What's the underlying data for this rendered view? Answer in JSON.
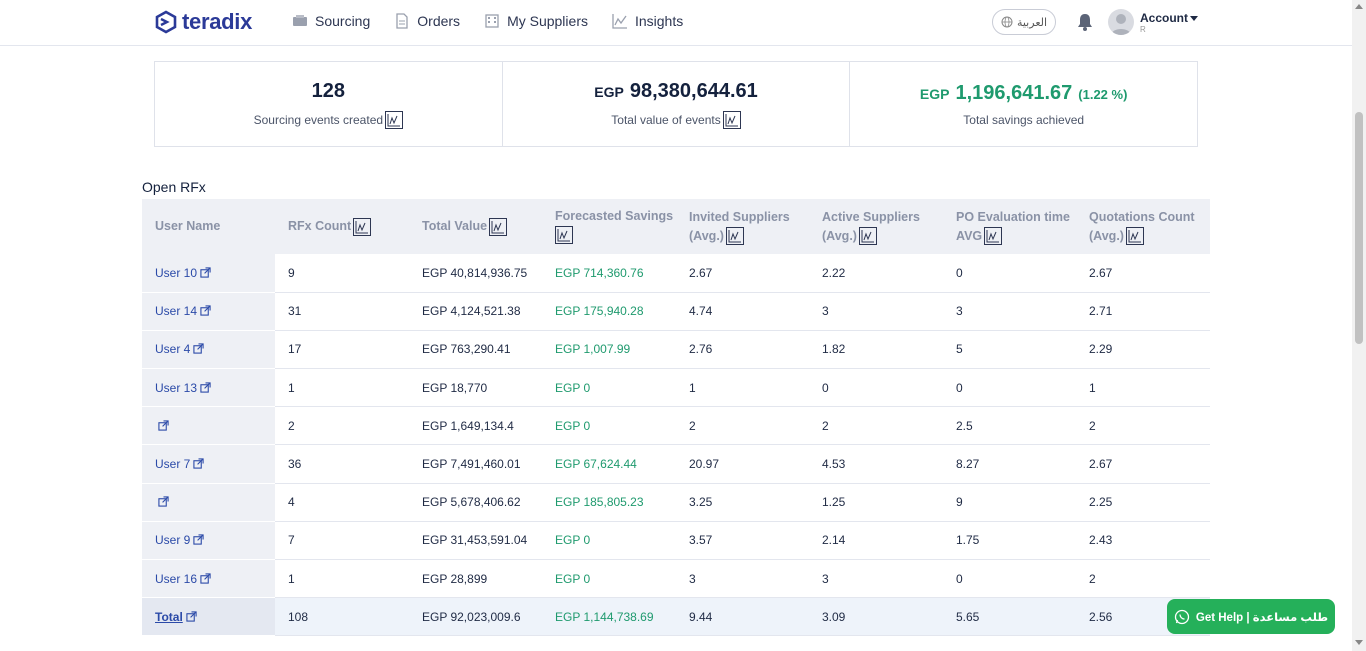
{
  "brand": {
    "name": "teradix"
  },
  "nav": [
    {
      "label": "Sourcing",
      "icon": "sourcing-icon"
    },
    {
      "label": "Orders",
      "icon": "document-icon"
    },
    {
      "label": "My Suppliers",
      "icon": "building-icon"
    },
    {
      "label": "Insights",
      "icon": "chart-icon"
    }
  ],
  "header": {
    "language_label": "العربية",
    "account_label": "Account",
    "account_sub": "R"
  },
  "stats": {
    "events": {
      "value": "128",
      "label": "Sourcing events created"
    },
    "total_value": {
      "currency": "EGP",
      "value": "98,380,644.61",
      "label": "Total value of events"
    },
    "savings": {
      "currency": "EGP",
      "value": "1,196,641.67",
      "percent": "(1.22 %)",
      "label": "Total savings achieved"
    }
  },
  "section": {
    "title": "Open RFx"
  },
  "table": {
    "columns": [
      {
        "line1": "User Name",
        "line2": "",
        "chart": false
      },
      {
        "line1": "RFx Count",
        "line2": "",
        "chart": true
      },
      {
        "line1": "Total Value",
        "line2": "",
        "chart": true
      },
      {
        "line1": "Forecasted Savings",
        "line2": "",
        "chart": true
      },
      {
        "line1": "Invited Suppliers",
        "line2": "(Avg.)",
        "chart": true
      },
      {
        "line1": "Active Suppliers",
        "line2": "(Avg.)",
        "chart": true
      },
      {
        "line1": "PO Evaluation time",
        "line2": "AVG",
        "chart": true
      },
      {
        "line1": "Quotations Count",
        "line2": "(Avg.)",
        "chart": true
      }
    ],
    "rows": [
      {
        "user": "User 10",
        "count": "9",
        "value": "EGP 40,814,936.75",
        "savings": "EGP 714,360.76",
        "invited": "2.67",
        "active": "2.22",
        "po": "0",
        "quotes": "2.67"
      },
      {
        "user": "User 14",
        "count": "31",
        "value": "EGP 4,124,521.38",
        "savings": "EGP 175,940.28",
        "invited": "4.74",
        "active": "3",
        "po": "3",
        "quotes": "2.71"
      },
      {
        "user": "User 4",
        "count": "17",
        "value": "EGP 763,290.41",
        "savings": "EGP 1,007.99",
        "invited": "2.76",
        "active": "1.82",
        "po": "5",
        "quotes": "2.29"
      },
      {
        "user": "User 13",
        "count": "1",
        "value": "EGP 18,770",
        "savings": "EGP 0",
        "invited": "1",
        "active": "0",
        "po": "0",
        "quotes": "1"
      },
      {
        "user": "",
        "count": "2",
        "value": "EGP 1,649,134.4",
        "savings": "EGP 0",
        "invited": "2",
        "active": "2",
        "po": "2.5",
        "quotes": "2"
      },
      {
        "user": "User 7",
        "count": "36",
        "value": "EGP 7,491,460.01",
        "savings": "EGP 67,624.44",
        "invited": "20.97",
        "active": "4.53",
        "po": "8.27",
        "quotes": "2.67"
      },
      {
        "user": "",
        "count": "4",
        "value": "EGP 5,678,406.62",
        "savings": "EGP 185,805.23",
        "invited": "3.25",
        "active": "1.25",
        "po": "9",
        "quotes": "2.25"
      },
      {
        "user": "User 9",
        "count": "7",
        "value": "EGP 31,453,591.04",
        "savings": "EGP 0",
        "invited": "3.57",
        "active": "2.14",
        "po": "1.75",
        "quotes": "2.43"
      },
      {
        "user": "User 16",
        "count": "1",
        "value": "EGP 28,899",
        "savings": "EGP 0",
        "invited": "3",
        "active": "3",
        "po": "0",
        "quotes": "2"
      }
    ],
    "total": {
      "user": "Total",
      "count": "108",
      "value": "EGP 92,023,009.6",
      "savings": "EGP 1,144,738.69",
      "invited": "9.44",
      "active": "3.09",
      "po": "5.65",
      "quotes": "2.56"
    }
  },
  "help": {
    "label": "Get Help | طلب مساعدة"
  },
  "colors": {
    "brand": "#2b3a98",
    "green": "#1f9a6e",
    "whatsapp": "#25b05a",
    "header_bg": "#eef0f5"
  }
}
